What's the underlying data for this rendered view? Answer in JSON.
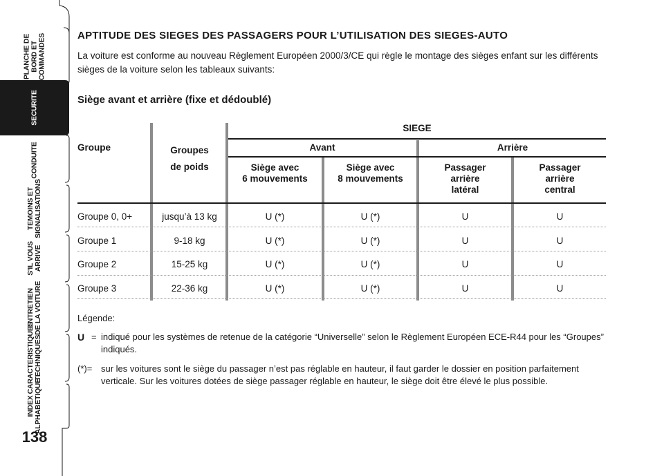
{
  "sidebar": {
    "tabs": [
      {
        "label": "PLANCHE DE\nBORD ET\nCOMMANDES",
        "active": false
      },
      {
        "label": "SECURITE",
        "active": true
      },
      {
        "label": "CONDUITE",
        "active": false
      },
      {
        "label": "TEMOINS ET\nSIGNALISATIONS",
        "active": false
      },
      {
        "label": "S'IL VOUS\nARRIVE",
        "active": false
      },
      {
        "label": "ENTRETIEN\nDE LA VOITURE",
        "active": false
      },
      {
        "label": "CARACTERISTIQUES\nTECHNIQUES",
        "active": false
      },
      {
        "label": "INDEX\nALPHABETIQUE",
        "active": false
      }
    ],
    "page_number": "138"
  },
  "content": {
    "heading": "APTITUDE DES SIEGES DES PASSAGERS POUR L’UTILISATION DES SIEGES-AUTO",
    "intro": "La voiture est conforme au nouveau Règlement Européen 2000/3/CE qui règle le montage des sièges enfant sur les différents sièges de la voiture selon les tableaux suivants:",
    "subheading": "Siège avant et arrière (fixe et dédoublé)"
  },
  "table": {
    "top_header": "SIEGE",
    "col_groupe": "Groupe",
    "col_groupes_poids": "Groupes\nde poids",
    "avant": "Avant",
    "arriere": "Arrière",
    "subcols": [
      "Siège avec\n6 mouvements",
      "Siège avec\n8 mouvements",
      "Passager\narrière\nlatéral",
      "Passager\narrière\ncentral"
    ],
    "rows": [
      {
        "groupe": "Groupe 0, 0+",
        "poids": "jusqu’à 13 kg",
        "c1": "U (*)",
        "c2": "U (*)",
        "c3": "U",
        "c4": "U"
      },
      {
        "groupe": "Groupe 1",
        "poids": "9-18 kg",
        "c1": "U (*)",
        "c2": "U (*)",
        "c3": "U",
        "c4": "U"
      },
      {
        "groupe": "Groupe 2",
        "poids": "15-25 kg",
        "c1": "U (*)",
        "c2": "U (*)",
        "c3": "U",
        "c4": "U"
      },
      {
        "groupe": "Groupe 3",
        "poids": "22-36 kg",
        "c1": "U (*)",
        "c2": "U (*)",
        "c3": "U",
        "c4": "U"
      }
    ]
  },
  "legend": {
    "title": "Légende:",
    "items": [
      {
        "key": "U",
        "sep": "=",
        "text": "indiqué pour les systèmes de retenue de la catégorie “Universelle” selon le Règlement Européen ECE-R44 pour les “Groupes” indiqués."
      },
      {
        "key": "(*)=",
        "sep": "",
        "text": "sur les voitures sont le siège du passager n’est pas réglable en hauteur, il faut garder le dossier en position parfaitement verticale. Sur les voitures dotées de siège passager réglable en hauteur, le siège doit être élevé le plus possible."
      }
    ]
  },
  "colors": {
    "active_tab": "#1a1a1a",
    "separator": "#8c8c8c",
    "text": "#1a1a1a"
  }
}
